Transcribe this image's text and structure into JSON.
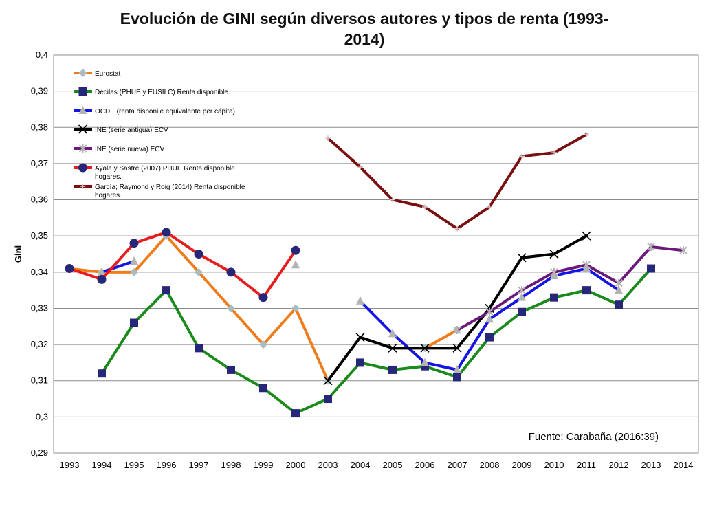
{
  "chart_data": {
    "type": "line",
    "title": "Evolución de GINI según diversos autores y tipos de renta (1993-2014)",
    "title_line1": "Evolución de GINI según diversos autores y tipos de renta (1993-",
    "title_line2": "2014)",
    "xlabel": "",
    "ylabel": "Gini",
    "categories": [
      "1993",
      "1994",
      "1995",
      "1996",
      "1997",
      "1998",
      "1999",
      "2000",
      "2003",
      "2004",
      "2005",
      "2006",
      "2007",
      "2008",
      "2009",
      "2010",
      "2011",
      "2012",
      "2013",
      "2014"
    ],
    "ylim": [
      0.29,
      0.4
    ],
    "yticks": [
      "0,29",
      "0,3",
      "0,31",
      "0,32",
      "0,33",
      "0,34",
      "0,35",
      "0,36",
      "0,37",
      "0,38",
      "0,39",
      "0,4"
    ],
    "grid": true,
    "legend_position": "top-left",
    "source_note": "Fuente: Carabaña (2016:39)",
    "series": [
      {
        "name": "Eurostat",
        "color": "#f07c1b",
        "marker": "diamond",
        "marker_color": "#a9bcc0",
        "values": [
          0.341,
          0.34,
          0.34,
          0.35,
          0.34,
          0.33,
          0.32,
          0.33,
          0.31,
          null,
          null,
          0.319,
          0.324,
          null,
          null,
          null,
          null,
          null,
          null,
          null
        ]
      },
      {
        "name": "Decilas (PHUE y EUSILC) Renta disponible.",
        "color": "#1a8a1a",
        "marker": "square",
        "marker_color": "#27277a",
        "values": [
          null,
          0.312,
          0.326,
          0.335,
          0.319,
          0.313,
          0.308,
          0.301,
          0.305,
          0.315,
          0.313,
          0.314,
          0.311,
          0.322,
          0.329,
          0.333,
          0.335,
          0.331,
          0.341,
          null
        ]
      },
      {
        "name": "OCDE (renta disponile equivalente per cápita)",
        "color": "#1414e6",
        "marker": "triangle",
        "marker_color": "#b4b4b4",
        "values": [
          null,
          0.34,
          0.343,
          null,
          null,
          null,
          null,
          0.342,
          null,
          0.332,
          0.323,
          0.315,
          0.313,
          0.327,
          0.333,
          0.339,
          0.341,
          0.335,
          null,
          null
        ]
      },
      {
        "name": "INE (serie antigua) ECV",
        "color": "#000000",
        "marker": "x",
        "marker_color": "#000000",
        "values": [
          null,
          null,
          null,
          null,
          null,
          null,
          null,
          null,
          0.31,
          0.322,
          0.319,
          0.319,
          0.319,
          0.33,
          0.344,
          0.345,
          0.35,
          null,
          null,
          null
        ]
      },
      {
        "name": "INE (serie nueva) ECV",
        "color": "#6a1a7a",
        "marker": "star",
        "marker_color": "#b4b4b4",
        "values": [
          null,
          null,
          null,
          null,
          null,
          null,
          null,
          null,
          null,
          null,
          null,
          null,
          0.324,
          0.329,
          0.335,
          0.34,
          0.342,
          0.337,
          0.347,
          0.346
        ]
      },
      {
        "name": "Ayala y Sastre (2007) PHUE Renta disponible hogares.",
        "name_line1": "Ayala y Sastre (2007) PHUE Renta disponible",
        "name_line2": "hogares.",
        "color": "#e81c1c",
        "marker": "circle",
        "marker_color": "#27277a",
        "values": [
          0.341,
          0.338,
          0.348,
          0.351,
          0.345,
          0.34,
          0.333,
          0.346,
          null,
          null,
          null,
          null,
          null,
          null,
          null,
          null,
          null,
          null,
          null,
          null
        ]
      },
      {
        "name": "García; Raymond y Roig (2014) Renta disponible hogares.",
        "name_line1": "García; Raymond y Roig (2014) Renta disponible",
        "name_line2": "hogares.",
        "color": "#7a0f0f",
        "marker": "plus",
        "marker_color": "#d8c8c8",
        "values": [
          null,
          null,
          null,
          null,
          null,
          null,
          null,
          null,
          0.377,
          0.369,
          0.36,
          0.358,
          0.352,
          0.358,
          0.372,
          0.373,
          0.378,
          null,
          null,
          null
        ]
      }
    ]
  }
}
